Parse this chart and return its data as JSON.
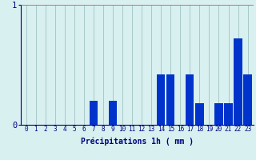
{
  "hours": [
    0,
    1,
    2,
    3,
    4,
    5,
    6,
    7,
    8,
    9,
    10,
    11,
    12,
    13,
    14,
    15,
    16,
    17,
    18,
    19,
    20,
    21,
    22,
    23
  ],
  "values": [
    0,
    0,
    0,
    0,
    0,
    0,
    0,
    0.2,
    0,
    0.2,
    0,
    0,
    0,
    0,
    0.42,
    0.42,
    0,
    0.42,
    0.18,
    0,
    0.18,
    0.18,
    0.72,
    0.42
  ],
  "bar_color": "#0033cc",
  "bg_color": "#d8f0f0",
  "grid_x_color": "#a8c8c8",
  "grid_y_color": "#dd6666",
  "axis_color": "#000080",
  "xlabel": "Précipitations 1h ( mm )",
  "ylim": [
    0,
    1.0
  ],
  "yticks": [
    0,
    1
  ],
  "xlabel_color": "#000080",
  "tick_color": "#000080",
  "xlabel_fontsize": 7.0,
  "tick_fontsize": 5.5,
  "ytick_fontsize": 7.5
}
